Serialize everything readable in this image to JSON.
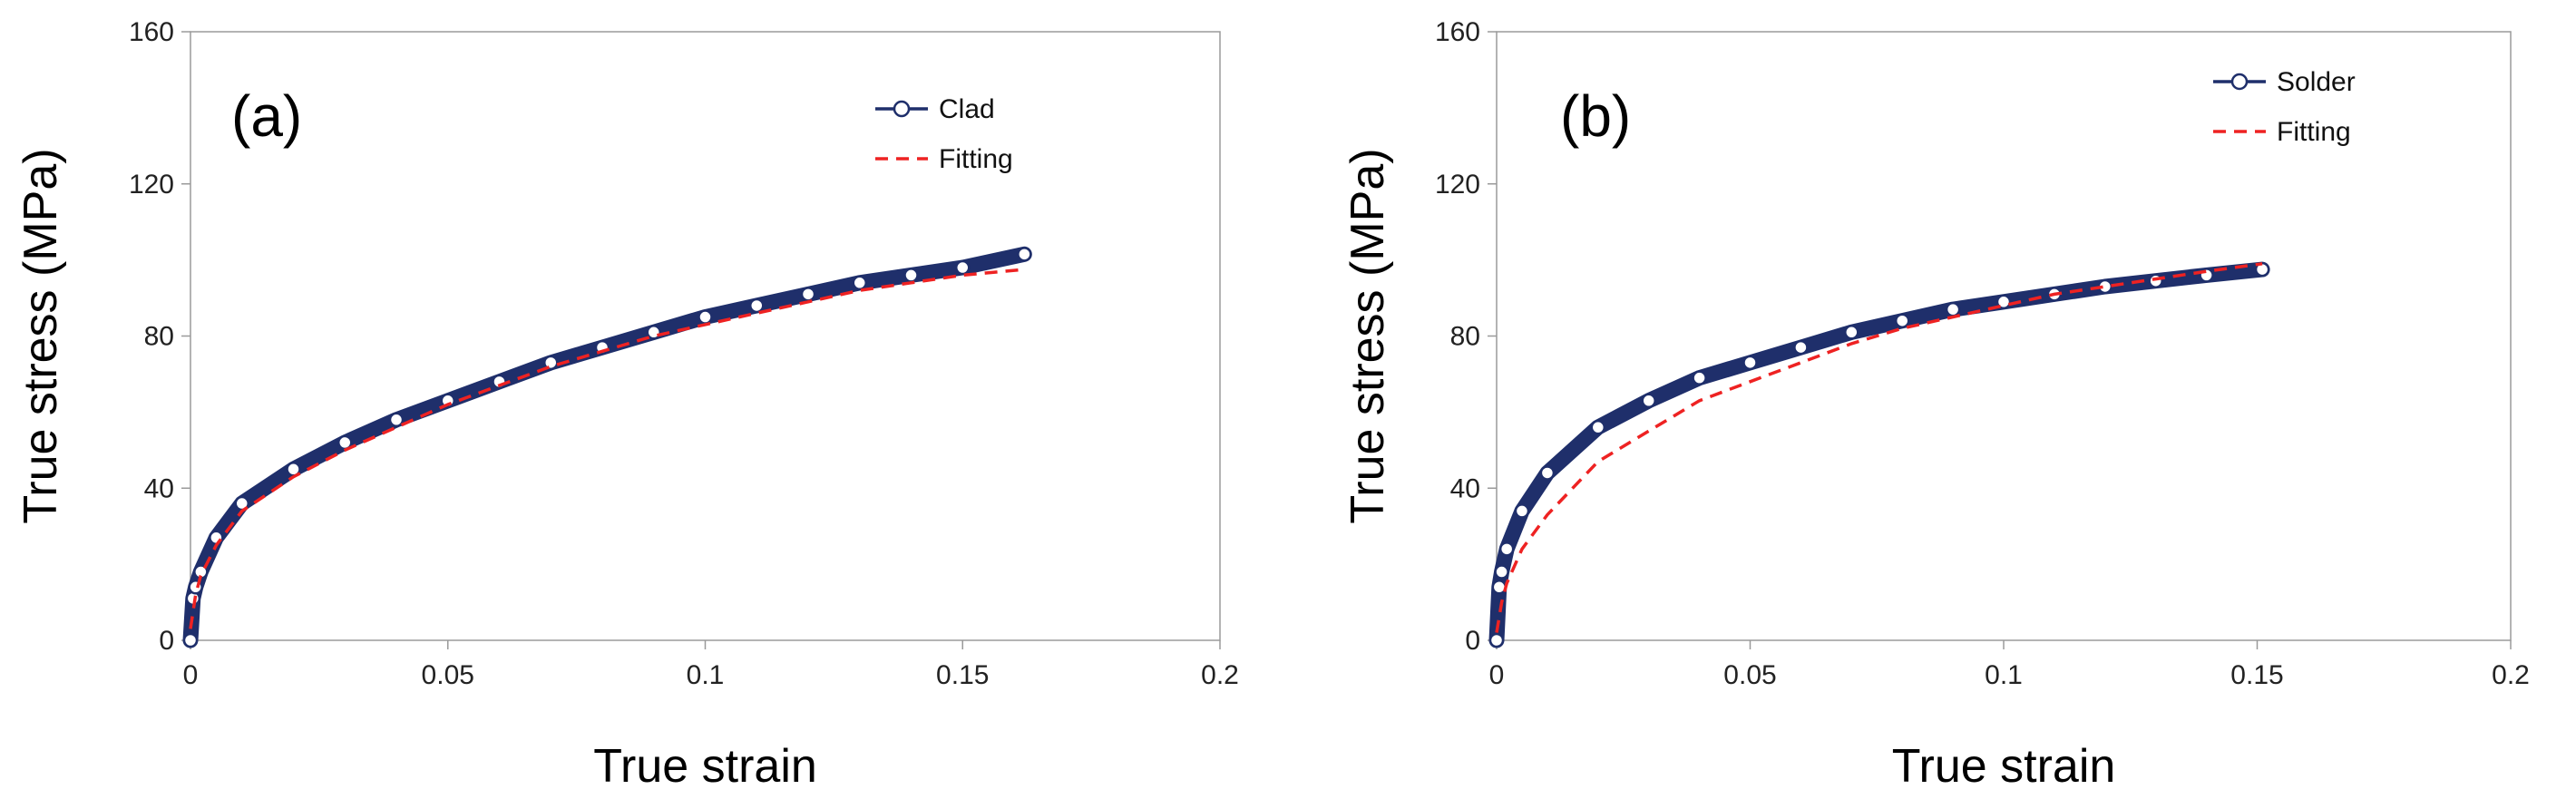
{
  "chart_data": [
    {
      "type": "line",
      "panel_label": "(a)",
      "xlabel": "True strain",
      "ylabel": "True stress (MPa)",
      "xlim": [
        0,
        0.2
      ],
      "ylim": [
        0,
        160
      ],
      "x_ticks": [
        0,
        0.05,
        0.1,
        0.15,
        0.2
      ],
      "x_tick_labels": [
        "0",
        "0.05",
        "0.1",
        "0.15",
        "0.2"
      ],
      "y_ticks": [
        0,
        40,
        80,
        120,
        160
      ],
      "y_tick_labels": [
        "0",
        "40",
        "80",
        "120",
        "160"
      ],
      "legend": "top-right",
      "series": [
        {
          "name": "Clad",
          "style": "line-marker",
          "color": "#1f2f6b",
          "x": [
            0,
            0.0005,
            0.001,
            0.002,
            0.005,
            0.01,
            0.02,
            0.03,
            0.04,
            0.05,
            0.06,
            0.07,
            0.08,
            0.09,
            0.1,
            0.11,
            0.12,
            0.13,
            0.14,
            0.15,
            0.162
          ],
          "y": [
            0,
            11,
            14,
            18,
            27,
            36,
            45,
            52,
            58,
            63,
            68,
            73,
            77,
            81,
            85,
            88,
            91,
            94,
            96,
            98,
            101.5
          ]
        },
        {
          "name": "Fitting",
          "style": "dashed",
          "color": "#ee2222",
          "x": [
            0,
            0.001,
            0.002,
            0.005,
            0.01,
            0.02,
            0.03,
            0.04,
            0.05,
            0.06,
            0.07,
            0.08,
            0.09,
            0.1,
            0.11,
            0.12,
            0.13,
            0.14,
            0.15,
            0.162
          ],
          "y": [
            3,
            12,
            17,
            25,
            34,
            43,
            50,
            56,
            62,
            67,
            72,
            76,
            80,
            83,
            86,
            89,
            92,
            94,
            96,
            97.5
          ]
        }
      ]
    },
    {
      "type": "line",
      "panel_label": "(b)",
      "xlabel": "True strain",
      "ylabel": "True stress (MPa)",
      "xlim": [
        0,
        0.2
      ],
      "ylim": [
        0,
        160
      ],
      "x_ticks": [
        0,
        0.05,
        0.1,
        0.15,
        0.2
      ],
      "x_tick_labels": [
        "0",
        "0.05",
        "0.1",
        "0.15",
        "0.2"
      ],
      "y_ticks": [
        0,
        40,
        80,
        120,
        160
      ],
      "y_tick_labels": [
        "0",
        "40",
        "80",
        "120",
        "160"
      ],
      "legend": "top-right",
      "series": [
        {
          "name": "Solder",
          "style": "line-marker",
          "color": "#1f2f6b",
          "x": [
            0,
            0.0005,
            0.001,
            0.002,
            0.005,
            0.01,
            0.02,
            0.03,
            0.04,
            0.05,
            0.06,
            0.07,
            0.08,
            0.09,
            0.1,
            0.11,
            0.12,
            0.13,
            0.14,
            0.151
          ],
          "y": [
            0,
            14,
            18,
            24,
            34,
            44,
            56,
            63,
            69,
            73,
            77,
            81,
            84,
            87,
            89,
            91,
            93,
            94.5,
            96,
            97.5
          ]
        },
        {
          "name": "Fitting",
          "style": "dashed",
          "color": "#ee2222",
          "x": [
            0,
            0.001,
            0.002,
            0.005,
            0.01,
            0.02,
            0.03,
            0.04,
            0.05,
            0.06,
            0.07,
            0.08,
            0.09,
            0.1,
            0.11,
            0.12,
            0.13,
            0.14,
            0.151
          ],
          "y": [
            2,
            10,
            15,
            24,
            33,
            47,
            55,
            63,
            68,
            73,
            78,
            82,
            85,
            88,
            91,
            93,
            95,
            97,
            99
          ]
        }
      ]
    }
  ]
}
